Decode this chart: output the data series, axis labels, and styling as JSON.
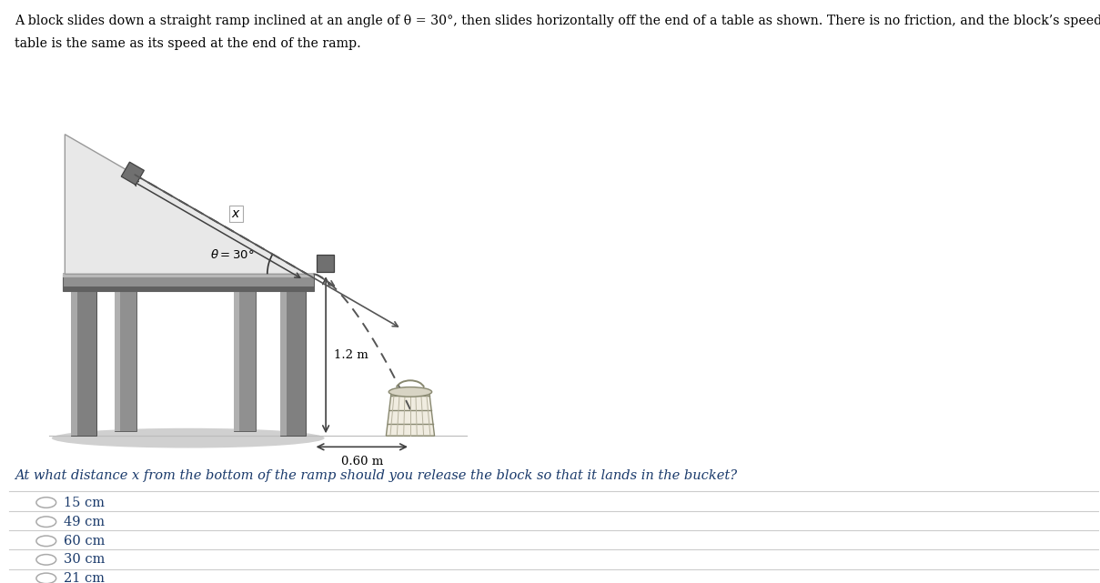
{
  "bg_color": "#ffffff",
  "text_color_dark": "#1a3a6b",
  "text_color_black": "#000000",
  "line_color": "#cccccc",
  "table_top_color": "#909090",
  "table_top_light": "#b8b8b8",
  "table_top_dark": "#606060",
  "table_leg_color": "#808080",
  "table_leg_dark": "#505050",
  "table_leg_light": "#a8a8a8",
  "ramp_fill": "#e8e8e8",
  "ramp_edge": "#999999",
  "block_color": "#707070",
  "block_edge": "#404040",
  "shadow_color": "#d0d0d0",
  "bucket_fill": "#f0ece0",
  "bucket_edge": "#888870",
  "bucket_stripe": "#c8c4b0",
  "arrow_color": "#404040",
  "dashed_color": "#555555",
  "top_text_line1": "A block slides down a straight ramp inclined at an angle of θ = 30°, then slides horizontally off the end of a table as shown. There is no friction, and the block’s speed leaving the",
  "top_text_line2": "table is the same as its speed at the end of the ramp.",
  "question_text": "At what distance x from the bottom of the ramp should you release the block so that it lands in the bucket?",
  "choices": [
    "15 cm",
    "49 cm",
    "60 cm",
    "30 cm",
    "21 cm"
  ]
}
